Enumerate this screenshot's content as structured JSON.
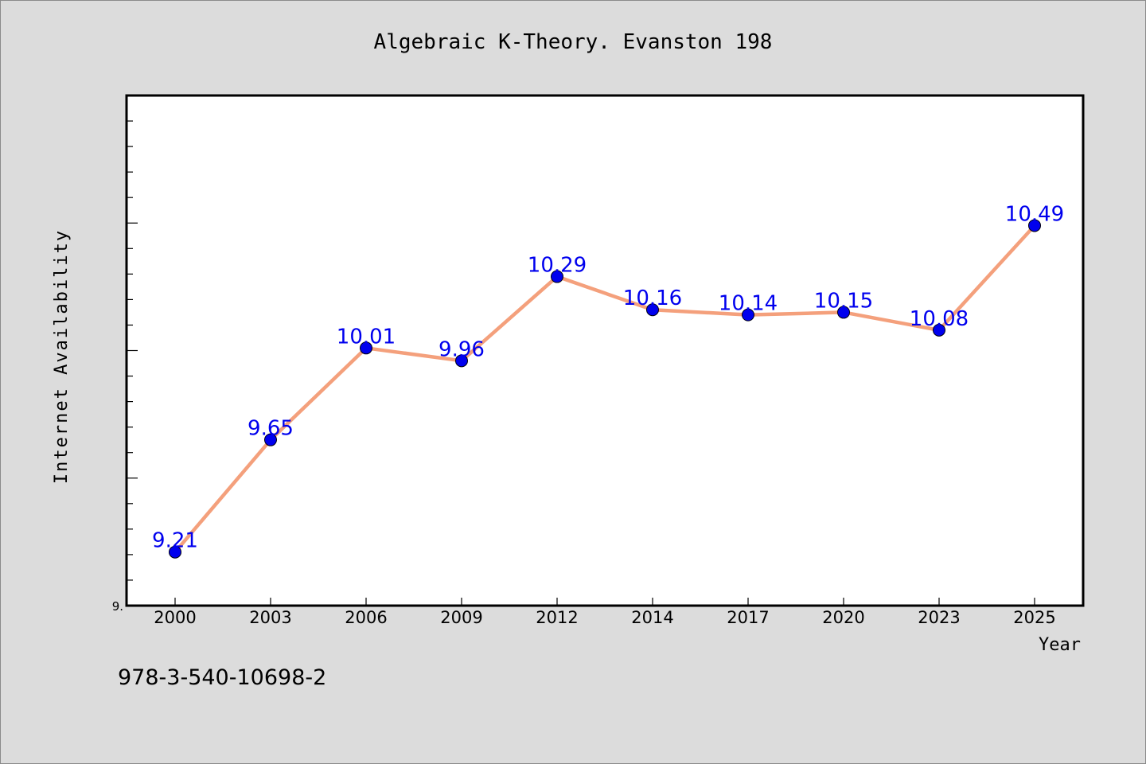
{
  "chart_data": {
    "type": "line",
    "title": "Algebraic K-Theory. Evanston 198",
    "xlabel": "Year",
    "ylabel": "Internet Availability",
    "categories": [
      "2000",
      "2003",
      "2006",
      "2009",
      "2012",
      "2014",
      "2017",
      "2020",
      "2023",
      "2025"
    ],
    "series": [
      {
        "values": [
          9.21,
          9.65,
          10.01,
          9.96,
          10.29,
          10.16,
          10.14,
          10.15,
          10.08,
          10.49
        ],
        "data_labels": [
          "9.21",
          "9.65",
          "10.01",
          "9.96",
          "10.29",
          "10.16",
          "10.14",
          "10.15",
          "10.08",
          "10.49"
        ]
      }
    ],
    "ylim": [
      9.0,
      11.0
    ],
    "y_tick_labels": [
      "9."
    ],
    "line_color": "#f4a07c",
    "marker_color": "#0000ee",
    "label_color": "#0000ee",
    "grid": false
  },
  "footer": {
    "isbn": "978-3-540-10698-2"
  },
  "colors": {
    "background": "#dcdcdc",
    "plot_background": "#ffffff"
  }
}
